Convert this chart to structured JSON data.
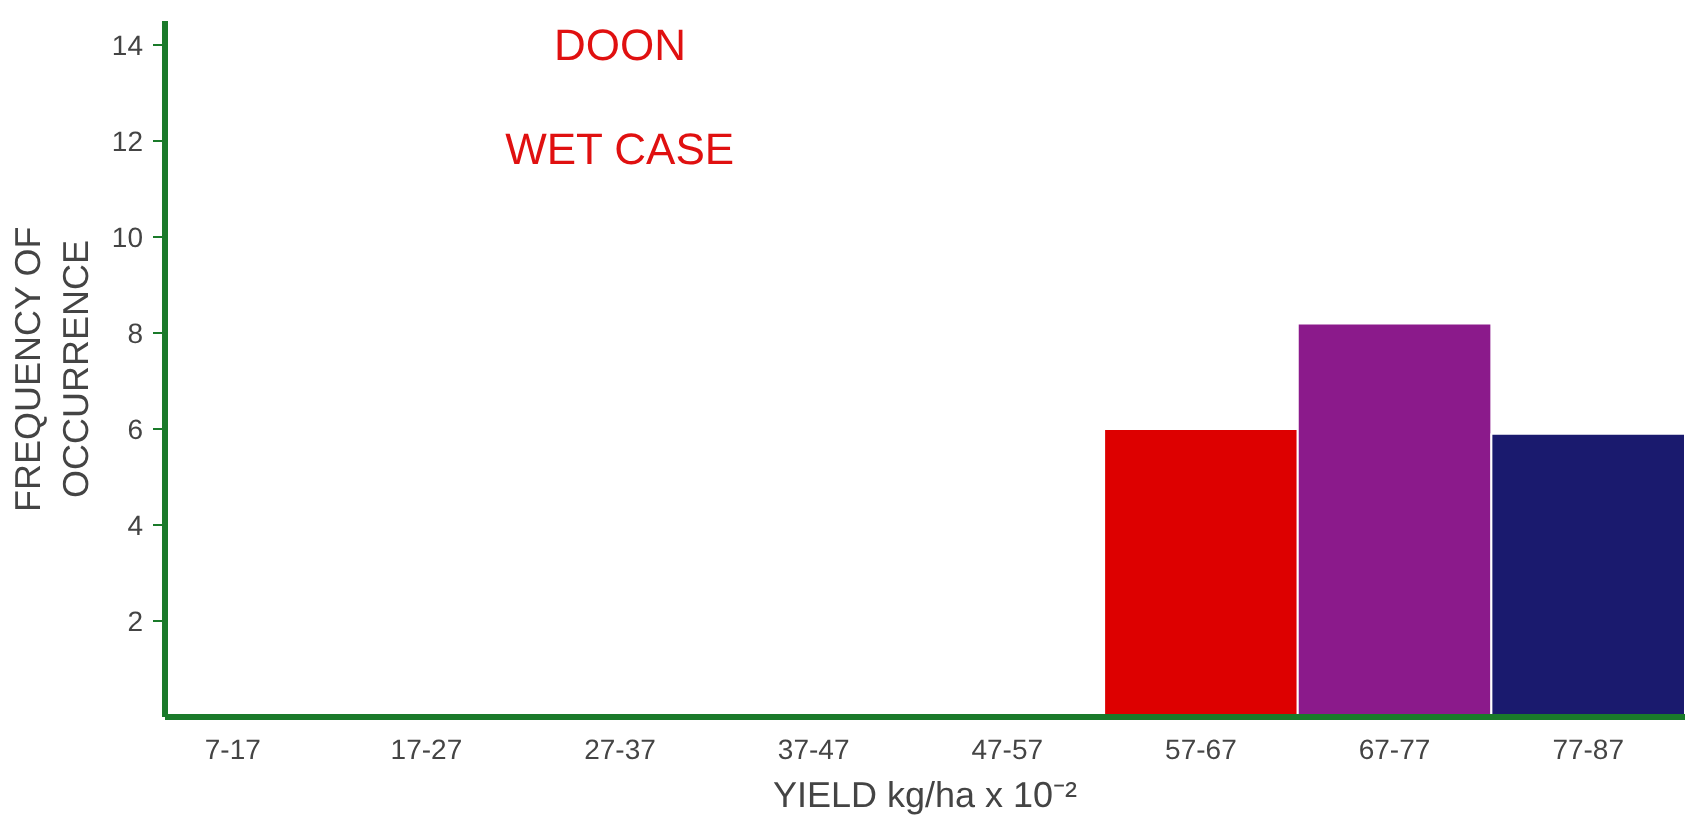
{
  "chart_data": {
    "type": "bar",
    "title": "DOON",
    "subtitle": "WET CASE",
    "xlabel": "YIELD kg/ha x 10⁻²",
    "ylabel": "FREQUENCY OF\nOCCURRENCE",
    "categories": [
      "7-17",
      "17-27",
      "27-37",
      "37-47",
      "47-57",
      "57-67",
      "67-77",
      "77-87"
    ],
    "values": [
      null,
      null,
      null,
      null,
      null,
      6,
      8.2,
      5.9
    ],
    "colors": [
      null,
      null,
      null,
      null,
      null,
      "#dd0000",
      "#8b1a8b",
      "#1a1a6e"
    ],
    "ylim": [
      0,
      14.5
    ],
    "yticks": [
      2,
      4,
      6,
      8,
      10,
      12,
      14
    ],
    "grid": false
  }
}
